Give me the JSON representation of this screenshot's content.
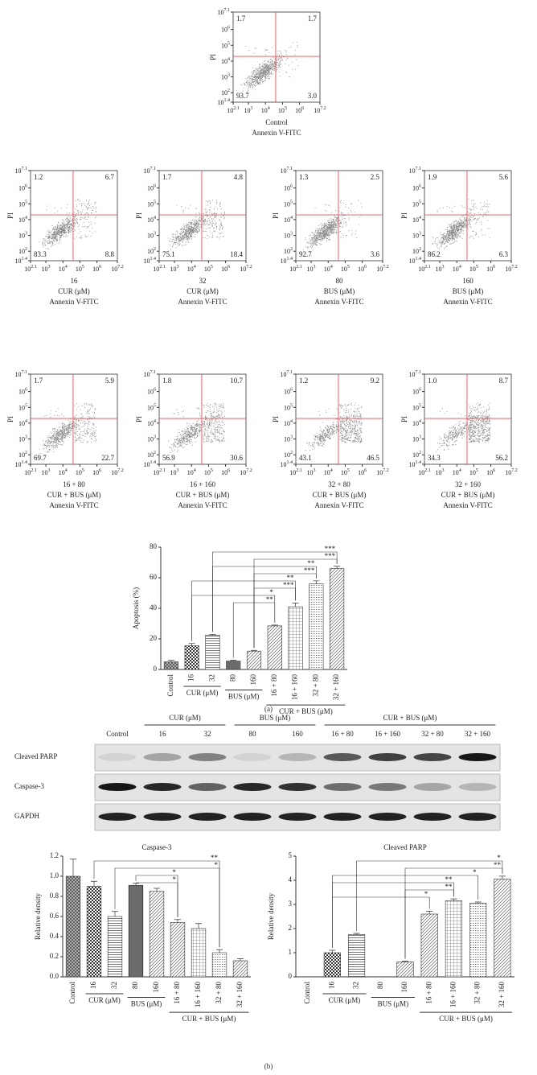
{
  "flow_axes": {
    "xlim": [
      2.1,
      7.2
    ],
    "ylim": [
      1.4,
      7.1
    ],
    "ylabel": "PI",
    "gate": {
      "x": 4.6,
      "y": 4.3
    },
    "xticks": [
      {
        "value": 2.1,
        "label": "10",
        "exponent": "2.1"
      },
      {
        "value": 3,
        "label": "10",
        "exponent": "3"
      },
      {
        "value": 4,
        "label": "10",
        "exponent": "4"
      },
      {
        "value": 5,
        "label": "10",
        "exponent": "5"
      },
      {
        "value": 6,
        "label": "10",
        "exponent": "6"
      },
      {
        "value": 7.2,
        "label": "10",
        "exponent": "7.2"
      }
    ],
    "yticks": [
      {
        "value": 1.4,
        "label": "10",
        "exponent": "1.4"
      },
      {
        "value": 2,
        "label": "10",
        "exponent": "2"
      },
      {
        "value": 3,
        "label": "10",
        "exponent": "3"
      },
      {
        "value": 4,
        "label": "10",
        "exponent": "4"
      },
      {
        "value": 5,
        "label": "10",
        "exponent": "5"
      },
      {
        "value": 6,
        "label": "10",
        "exponent": "6"
      },
      {
        "value": 7.1,
        "label": "10",
        "exponent": "7.1"
      }
    ]
  },
  "chart_data": [
    {
      "type": "flow",
      "caption": [
        "Control",
        "Annexin V-FITC"
      ],
      "values": [
        1.7,
        1.7,
        93.7,
        3
      ],
      "value_labels": [
        "1.7",
        "1.7",
        "93.7",
        "3.0"
      ]
    },
    {
      "type": "flow",
      "caption": [
        "16",
        "CUR (μM)",
        "Annexin V-FITC"
      ],
      "values": [
        1.2,
        6.7,
        83.3,
        8.8
      ],
      "value_labels": [
        "1.2",
        "6.7",
        "83.3",
        "8.8"
      ]
    },
    {
      "type": "flow",
      "caption": [
        "32",
        "CUR (μM)",
        "Annexin V-FITC"
      ],
      "values": [
        1.7,
        4.8,
        75.1,
        18.4
      ],
      "value_labels": [
        "1.7",
        "4.8",
        "75.1",
        "18.4"
      ]
    },
    {
      "type": "flow",
      "caption": [
        "80",
        "BUS (μM)",
        "Annexin V-FITC"
      ],
      "values": [
        1.3,
        2.5,
        92.7,
        3.6
      ],
      "value_labels": [
        "1.3",
        "2.5",
        "92.7",
        "3.6"
      ]
    },
    {
      "type": "flow",
      "caption": [
        "160",
        "BUS (μM)",
        "Annexin V-FITC"
      ],
      "values": [
        1.9,
        5.6,
        86.2,
        6.3
      ],
      "value_labels": [
        "1.9",
        "5.6",
        "86.2",
        "6.3"
      ]
    },
    {
      "type": "flow",
      "caption": [
        "16 + 80",
        "CUR + BUS (μM)",
        "Annexin V-FITC"
      ],
      "values": [
        1.7,
        5.9,
        69.7,
        22.7
      ],
      "value_labels": [
        "1.7",
        "5.9",
        "69.7",
        "22.7"
      ]
    },
    {
      "type": "flow",
      "caption": [
        "16 + 160",
        "CUR + BUS (μM)",
        "Annexin V-FITC"
      ],
      "values": [
        1.8,
        10.7,
        56.9,
        30.6
      ],
      "value_labels": [
        "1.8",
        "10.7",
        "56.9",
        "30.6"
      ]
    },
    {
      "type": "flow",
      "caption": [
        "32 + 80",
        "CUR + BUS (μM)",
        "Annexin V-FITC"
      ],
      "values": [
        1.2,
        9.2,
        43.1,
        46.5
      ],
      "value_labels": [
        "1.2",
        "9.2",
        "43.1",
        "46.5"
      ]
    },
    {
      "type": "flow",
      "caption": [
        "32 + 160",
        "CUR + BUS (μM)",
        "Annexin V-FITC"
      ],
      "values": [
        1,
        8.7,
        34.3,
        56.2
      ],
      "value_labels": [
        "1.0",
        "8.7",
        "34.3",
        "56.2"
      ]
    },
    {
      "type": "bar",
      "ylabel": "Apoptosis (%)",
      "categories": [
        "Control",
        "16",
        "32",
        "80",
        "160",
        "16 + 80",
        "16 + 160",
        "32 + 80",
        "32 + 160"
      ],
      "values": [
        5,
        15.5,
        22.5,
        5.5,
        12,
        28.5,
        41,
        56,
        66
      ],
      "errors": [
        1,
        1.5,
        0.5,
        0.5,
        0.5,
        0.5,
        2.5,
        2,
        1.5
      ],
      "patterns": [
        "crosshatch",
        "check",
        "hlines",
        "vlines",
        "diag",
        "diag",
        "grid",
        "dots",
        "diag"
      ],
      "ylim": [
        0,
        80
      ],
      "yticks": [
        0,
        20,
        40,
        60,
        80
      ],
      "groups": [
        {
          "label": "CUR (μM)",
          "from": 1,
          "to": 2
        },
        {
          "label": "BUS (μM)",
          "from": 3,
          "to": 4
        },
        {
          "label": "CUR + BUS (μM)",
          "from": 5,
          "to": 8
        }
      ],
      "significance": [
        {
          "from": 2,
          "to": 8,
          "label": "***"
        },
        {
          "from": 4,
          "to": 8,
          "label": "***"
        },
        {
          "from": 2,
          "to": 7,
          "label": "**"
        },
        {
          "from": 4,
          "to": 7,
          "label": "***"
        },
        {
          "from": 1,
          "to": 6,
          "label": "**"
        },
        {
          "from": 4,
          "to": 6,
          "label": "***"
        },
        {
          "from": 1,
          "to": 5,
          "label": "*"
        },
        {
          "from": 3,
          "to": 5,
          "label": "**"
        }
      ]
    },
    {
      "type": "bar",
      "title": "Caspase-3",
      "ylabel": "Relative density",
      "categories": [
        "Control",
        "16",
        "32",
        "80",
        "160",
        "16 + 80",
        "16 + 160",
        "32 + 80",
        "32 + 160"
      ],
      "values": [
        1,
        0.9,
        0.6,
        0.91,
        0.85,
        0.54,
        0.48,
        0.24,
        0.16
      ],
      "errors": [
        0.17,
        0.05,
        0.05,
        0.02,
        0.03,
        0.03,
        0.05,
        0.03,
        0.02
      ],
      "patterns": [
        "crosshatch",
        "check",
        "hlines",
        "vlines",
        "diag",
        "diag",
        "grid",
        "dots",
        "diag"
      ],
      "ylim": [
        0,
        1.2
      ],
      "yticks": [
        {
          "value": 0,
          "label": "0.0"
        },
        0.2,
        0.4,
        0.6,
        0.8,
        {
          "value": 1,
          "label": "1.0"
        },
        1.2
      ],
      "groups": [
        {
          "label": "CUR (μM)",
          "from": 1,
          "to": 2
        },
        {
          "label": "BUS (μM)",
          "from": 3,
          "to": 4
        },
        {
          "label": "CUR + BUS (μM)",
          "from": 5,
          "to": 8
        }
      ],
      "significance": [
        {
          "from": 1,
          "to": 7,
          "label": "**"
        },
        {
          "from": 2,
          "to": 7,
          "label": "*"
        },
        {
          "from": 3,
          "to": 5,
          "label": "*"
        },
        {
          "from": 3,
          "to": 5,
          "label": "*"
        }
      ]
    },
    {
      "type": "bar",
      "title": "Cleaved PARP",
      "ylabel": "Relative density",
      "categories": [
        "Control",
        "16",
        "32",
        "80",
        "160",
        "16 + 80",
        "16 + 160",
        "32 + 80",
        "32 + 160"
      ],
      "values": [
        0,
        1,
        1.75,
        0,
        0.62,
        2.6,
        3.15,
        3.05,
        4.05
      ],
      "errors": [
        0,
        0.1,
        0.05,
        0,
        0.03,
        0.12,
        0.08,
        0.05,
        0.12
      ],
      "patterns": [
        "crosshatch",
        "check",
        "hlines",
        "vlines",
        "diag",
        "diag",
        "grid",
        "dots",
        "diag"
      ],
      "ylim": [
        0,
        5
      ],
      "yticks": [
        0,
        1,
        2,
        3,
        4,
        5
      ],
      "groups": [
        {
          "label": "CUR (μM)",
          "from": 1,
          "to": 2
        },
        {
          "label": "BUS (μM)",
          "from": 3,
          "to": 4
        },
        {
          "label": "CUR + BUS (μM)",
          "from": 5,
          "to": 8
        }
      ],
      "significance": [
        {
          "from": 2,
          "to": 8,
          "label": "*"
        },
        {
          "from": 4,
          "to": 8,
          "label": "**"
        },
        {
          "from": 1,
          "to": 7,
          "label": "*"
        },
        {
          "from": 1,
          "to": 6,
          "label": "**"
        },
        {
          "from": 4,
          "to": 6,
          "label": "**"
        },
        {
          "from": 1,
          "to": 5,
          "label": "*"
        }
      ]
    }
  ],
  "blot": {
    "columns": [
      "Control",
      "16",
      "32",
      "80",
      "160",
      "16 + 80",
      "16 + 160",
      "32 + 80",
      "32 + 160"
    ],
    "groups": [
      {
        "label": "CUR (μM)",
        "from": 1,
        "to": 2
      },
      {
        "label": "BUS (μM)",
        "from": 3,
        "to": 4
      },
      {
        "label": "CUR + BUS (μM)",
        "from": 5,
        "to": 8
      }
    ],
    "rows": [
      "Cleaved PARP",
      "Caspase-3",
      "GAPDH"
    ]
  },
  "panel_labels": [
    "(a)",
    "(b)"
  ]
}
